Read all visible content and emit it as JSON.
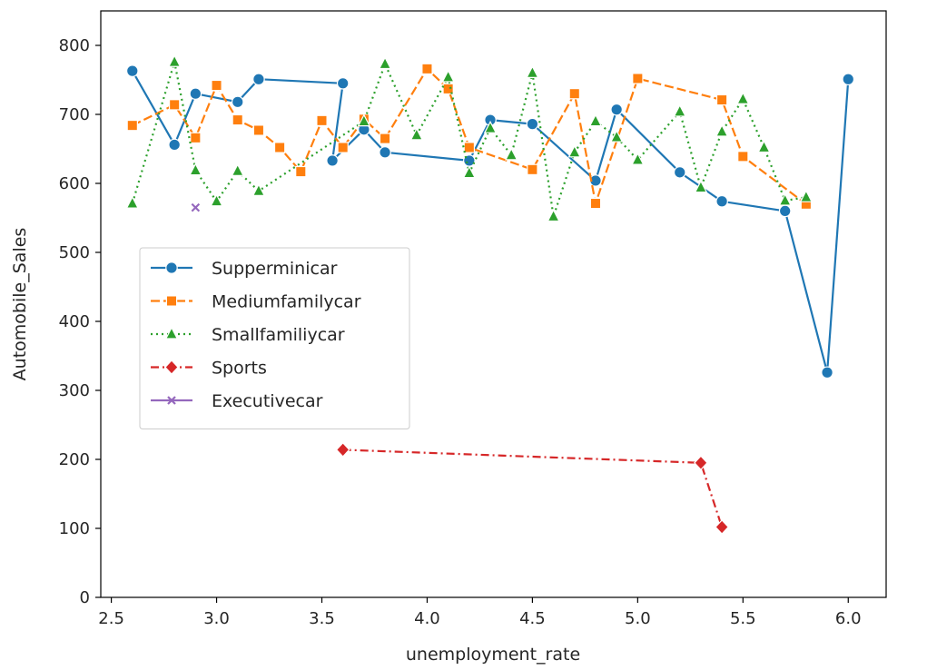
{
  "chart_data": {
    "type": "line",
    "xlabel": "unemployment_rate",
    "ylabel": "Automobile_Sales",
    "xlim": [
      2.45,
      6.18
    ],
    "ylim": [
      0,
      850
    ],
    "xticks": [
      "2.5",
      "3.0",
      "3.5",
      "4.0",
      "4.5",
      "5.0",
      "5.5",
      "6.0"
    ],
    "yticks": [
      "0",
      "100",
      "200",
      "300",
      "400",
      "500",
      "600",
      "700",
      "800"
    ],
    "grid": false,
    "legend_position": "center-left",
    "series": [
      {
        "name": "Supperminicar",
        "color": "#1f77b4",
        "marker": "circle",
        "line_style": "solid",
        "x": [
          2.6,
          2.8,
          2.9,
          3.1,
          3.2,
          3.6,
          3.55,
          3.7,
          3.8,
          4.2,
          4.3,
          4.5,
          4.8,
          4.9,
          5.2,
          5.4,
          5.7,
          5.9,
          6.0
        ],
        "y": [
          763,
          656,
          730,
          718,
          751,
          745,
          633,
          678,
          645,
          633,
          692,
          686,
          604,
          707,
          616,
          574,
          560,
          326,
          751
        ]
      },
      {
        "name": "Mediumfamilycar",
        "color": "#ff7f0e",
        "marker": "square",
        "line_style": "dashed",
        "x": [
          2.6,
          2.8,
          2.9,
          3.0,
          3.1,
          3.2,
          3.3,
          3.4,
          3.5,
          3.6,
          3.7,
          3.8,
          4.0,
          4.1,
          4.2,
          4.5,
          4.7,
          4.8,
          5.0,
          5.4,
          5.5,
          5.8
        ],
        "y": [
          684,
          714,
          666,
          742,
          692,
          677,
          652,
          617,
          691,
          652,
          693,
          665,
          766,
          737,
          652,
          620,
          730,
          571,
          752,
          721,
          639,
          570
        ]
      },
      {
        "name": "Smallfamiliycar",
        "color": "#2ca02c",
        "marker": "triangle",
        "line_style": "dotted",
        "x": [
          2.6,
          2.8,
          2.9,
          3.0,
          3.1,
          3.2,
          3.7,
          3.8,
          3.95,
          4.1,
          4.2,
          4.3,
          4.4,
          4.5,
          4.6,
          4.7,
          4.8,
          4.9,
          5.0,
          5.2,
          5.3,
          5.4,
          5.5,
          5.6,
          5.7,
          5.8
        ],
        "y": [
          571,
          776,
          619,
          574,
          618,
          589,
          690,
          773,
          670,
          754,
          615,
          680,
          641,
          760,
          552,
          645,
          690,
          667,
          634,
          704,
          594,
          675,
          722,
          652,
          575,
          580
        ]
      },
      {
        "name": "Sports",
        "color": "#d62728",
        "marker": "diamond",
        "line_style": "dashdot",
        "x": [
          3.6,
          5.3,
          5.4
        ],
        "y": [
          214,
          195,
          102
        ]
      },
      {
        "name": "Executivecar",
        "color": "#9467bd",
        "marker": "x",
        "line_style": "solid",
        "x": [
          2.9
        ],
        "y": [
          565
        ]
      }
    ]
  }
}
